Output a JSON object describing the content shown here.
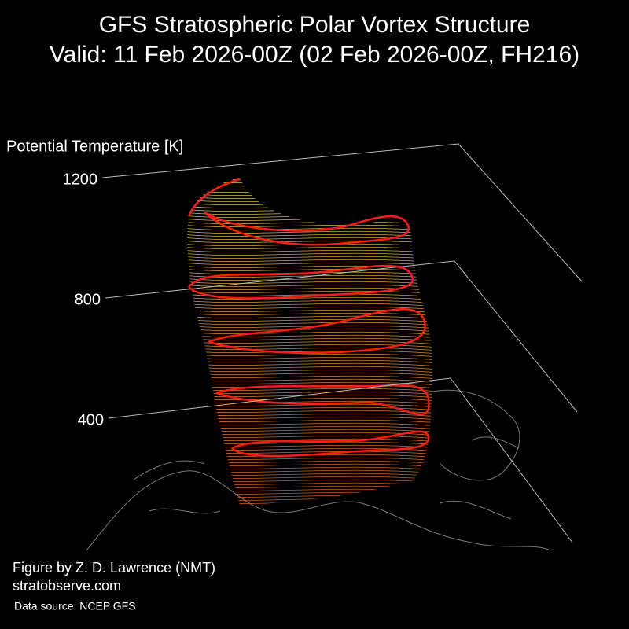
{
  "chart_data": {
    "type": "3d-vortex",
    "title": "GFS Stratospheric Polar Vortex Structure",
    "subtitle": "Valid: 11 Feb 2026-00Z  (02 Feb 2026-00Z, FH216)",
    "zlabel": "Potential Temperature [K]",
    "zlim": [
      400,
      1200
    ],
    "zticks": [
      400,
      800,
      1200
    ],
    "annotations": [
      "Figure by Z. D. Lawrence (NMT)",
      "stratobserve.com",
      "Data source: NCEP GFS"
    ]
  }
}
